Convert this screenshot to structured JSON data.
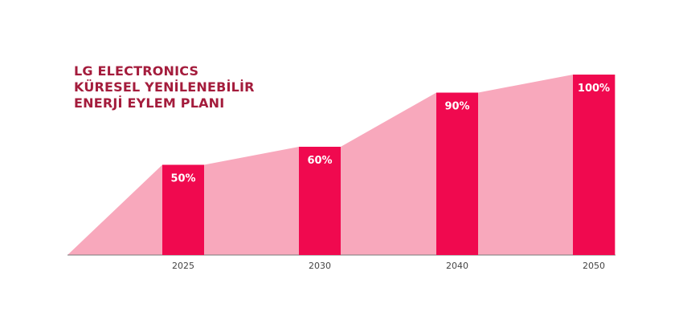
{
  "chart_data": {
    "type": "bar",
    "title_lines": [
      "LG ELECTRONICS",
      "KÜRESEL YENİLENEBİLİR",
      "ENERJİ EYLEM PLANI"
    ],
    "categories": [
      "2025",
      "2030",
      "2040",
      "2050"
    ],
    "values": [
      50,
      60,
      90,
      100
    ],
    "value_labels": [
      "50%",
      "60%",
      "90%",
      "100%"
    ],
    "ylim": [
      0,
      100
    ],
    "xlabel": "",
    "ylabel": "",
    "grid": false,
    "legend": "none",
    "area_fill": true,
    "colors": {
      "bar": "#f0094f",
      "area": "#f8a8bc",
      "title": "#a41c3c",
      "label_text": "#ffffff",
      "tick_text": "#444444",
      "baseline": "#7a7a7a"
    }
  }
}
